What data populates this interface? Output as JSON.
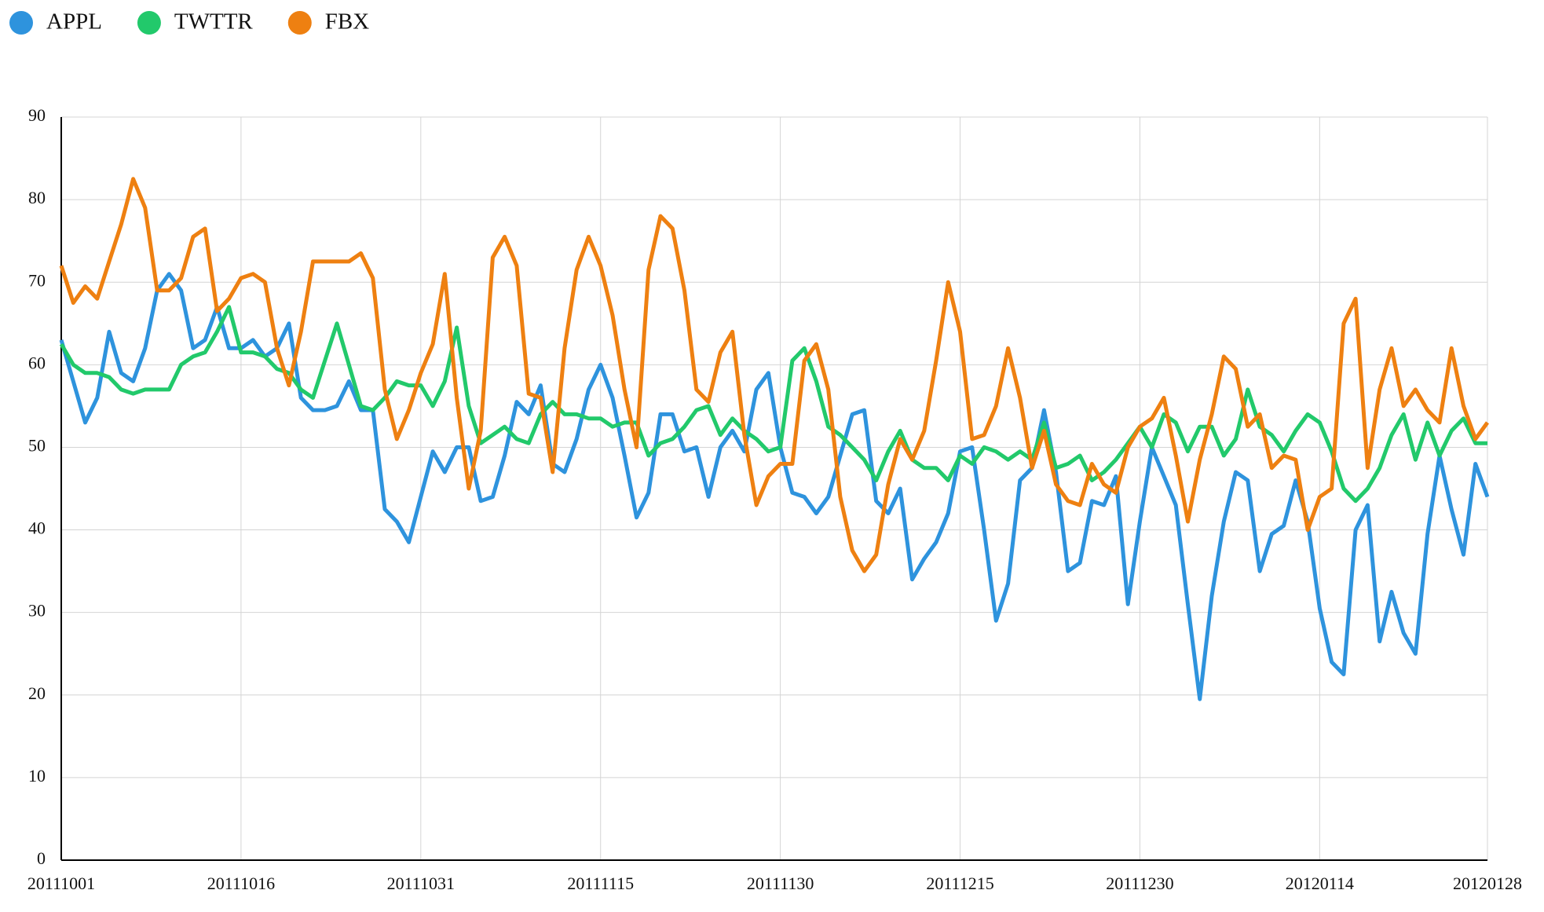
{
  "chart_data": {
    "type": "line",
    "categories": [
      "20111001",
      null,
      null,
      null,
      null,
      null,
      null,
      null,
      null,
      null,
      null,
      null,
      null,
      null,
      null,
      "20111016",
      null,
      null,
      null,
      null,
      null,
      null,
      null,
      null,
      null,
      null,
      null,
      null,
      null,
      null,
      "20111031",
      null,
      null,
      null,
      null,
      null,
      null,
      null,
      null,
      null,
      null,
      null,
      null,
      null,
      null,
      "20111115",
      null,
      null,
      null,
      null,
      null,
      null,
      null,
      null,
      null,
      null,
      null,
      null,
      null,
      null,
      "20111130",
      null,
      null,
      null,
      null,
      null,
      null,
      null,
      null,
      null,
      null,
      null,
      null,
      null,
      null,
      "20111215",
      null,
      null,
      null,
      null,
      null,
      null,
      null,
      null,
      null,
      null,
      null,
      null,
      null,
      null,
      "20111230",
      null,
      null,
      null,
      null,
      null,
      null,
      null,
      null,
      null,
      null,
      null,
      null,
      null,
      null,
      "20120114",
      null,
      null,
      null,
      null,
      null,
      null,
      null,
      null,
      null,
      null,
      null,
      null,
      null,
      "20120128"
    ],
    "series": [
      {
        "name": "APPL",
        "color": "#2e93dd",
        "values": [
          63,
          58,
          53,
          56,
          64,
          59,
          58,
          62,
          69,
          71,
          69,
          62,
          63,
          67,
          62,
          62,
          63,
          61,
          62,
          65,
          56,
          54.5,
          54.5,
          55,
          58,
          54.5,
          54.5,
          42.5,
          41,
          38.5,
          44,
          49.5,
          47,
          50,
          50,
          43.5,
          44,
          49,
          55.5,
          54,
          57.5,
          48,
          47,
          51,
          57,
          60,
          56,
          49,
          41.5,
          44.5,
          54,
          54,
          49.5,
          50,
          44,
          50,
          52,
          49.5,
          57,
          59,
          50,
          44.5,
          44,
          42,
          44,
          49,
          54,
          54.5,
          43.5,
          42,
          45,
          34,
          36.5,
          38.5,
          42,
          49.5,
          50,
          40,
          29,
          33.5,
          46,
          47.5,
          54.5,
          47,
          35,
          36,
          43.5,
          43,
          46.5,
          31,
          41,
          50,
          46.5,
          43,
          31,
          19.5,
          32,
          41,
          47,
          46,
          35,
          39.5,
          40.5,
          46,
          41,
          30.5,
          24,
          22.5,
          40,
          43,
          26.5,
          32.5,
          27.5,
          25,
          39.5,
          49,
          42.5,
          37,
          48,
          44
        ]
      },
      {
        "name": "TWTTR",
        "color": "#22c96b",
        "values": [
          62.5,
          60,
          59,
          59,
          58.5,
          57,
          56.5,
          57,
          57,
          57,
          60,
          61,
          61.5,
          64,
          67,
          61.5,
          61.5,
          61,
          59.5,
          59,
          57,
          56,
          60.5,
          65,
          60,
          55,
          54.5,
          56,
          58,
          57.5,
          57.5,
          55,
          58,
          64.5,
          55,
          50.5,
          51.5,
          52.5,
          51,
          50.5,
          54,
          55.5,
          54,
          54,
          53.5,
          53.5,
          52.5,
          53,
          53,
          49,
          50.5,
          51,
          52.5,
          54.5,
          55,
          51.5,
          53.5,
          52,
          51,
          49.5,
          50,
          60.5,
          62,
          58,
          52.5,
          51.5,
          50,
          48.5,
          46,
          49.5,
          52,
          48.5,
          47.5,
          47.5,
          46,
          49,
          48,
          50,
          49.5,
          48.5,
          49.5,
          48.5,
          53,
          47.5,
          48,
          49,
          46,
          47,
          48.5,
          50.5,
          52.5,
          50,
          54,
          53,
          49.5,
          52.5,
          52.5,
          49,
          51,
          57,
          52.5,
          51.5,
          49.5,
          52,
          54,
          53,
          49.5,
          45,
          43.5,
          45,
          47.5,
          51.5,
          54,
          48.5,
          53,
          49,
          52,
          53.5,
          50.5,
          50.5
        ]
      },
      {
        "name": "FBX",
        "color": "#ee8011",
        "values": [
          72,
          67.5,
          69.5,
          68,
          72.5,
          77,
          82.5,
          79,
          69,
          69,
          70.5,
          75.5,
          76.5,
          66.5,
          68,
          70.5,
          71,
          70,
          62,
          57.5,
          64,
          72.5,
          72.5,
          72.5,
          72.5,
          73.5,
          70.5,
          57,
          51,
          54.5,
          59,
          62.5,
          71,
          56,
          45,
          52,
          73,
          75.5,
          72,
          56.5,
          56,
          47,
          62,
          71.5,
          75.5,
          72,
          66,
          57,
          50,
          71.5,
          78,
          76.5,
          69,
          57,
          55.5,
          61.5,
          64,
          51.5,
          43,
          46.5,
          48,
          48,
          60.5,
          62.5,
          57,
          44,
          37.5,
          35,
          37,
          45.5,
          51,
          48.5,
          52,
          60.5,
          70,
          64,
          51,
          51.5,
          55,
          62,
          56,
          47.5,
          52,
          45.5,
          43.5,
          43,
          48,
          45.5,
          44.5,
          50,
          52.5,
          53.5,
          56,
          49,
          41,
          48.5,
          54,
          61,
          59.5,
          52.5,
          54,
          47.5,
          49,
          48.5,
          40,
          44,
          45,
          65,
          68,
          47.5,
          57,
          62,
          55,
          57,
          54.5,
          53,
          62,
          55,
          51,
          53
        ]
      }
    ],
    "ylim": [
      0,
      90
    ],
    "yticks": [
      0,
      10,
      20,
      30,
      40,
      50,
      60,
      70,
      80,
      90
    ],
    "grid": true
  }
}
